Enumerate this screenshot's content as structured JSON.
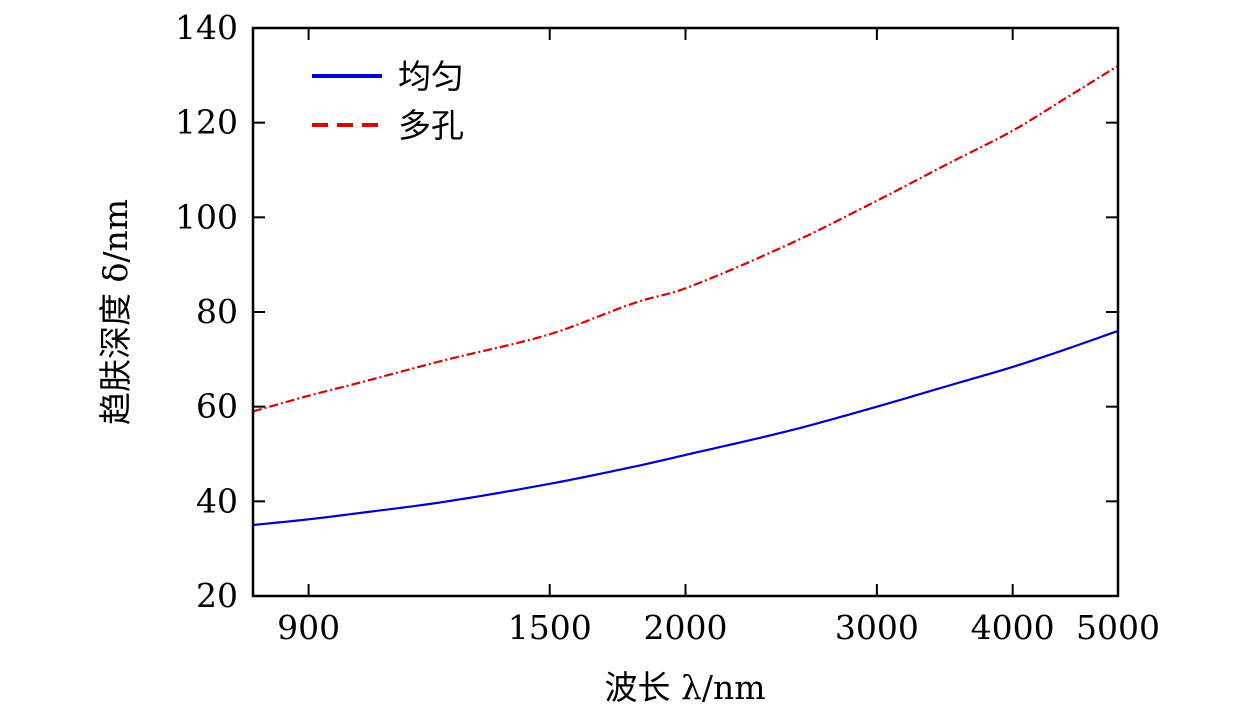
{
  "chart_data": {
    "type": "line",
    "title": "",
    "xlabel": "波长 λ/nm",
    "ylabel": "趋肤深度 δ/nm",
    "xscale": "log",
    "xlim": [
      800,
      5000
    ],
    "ylim": [
      20,
      140
    ],
    "xticks": [
      900,
      1500,
      2000,
      3000,
      4000,
      5000
    ],
    "xtick_labels": [
      "900",
      "1500",
      "2000",
      "3000",
      "4000",
      "5000"
    ],
    "yticks": [
      20,
      40,
      60,
      80,
      100,
      120,
      140
    ],
    "ytick_labels": [
      "20",
      "40",
      "60",
      "80",
      "100",
      "120",
      "140"
    ],
    "grid": false,
    "legend_position": "top-left",
    "x": [
      800,
      900,
      1000,
      1200,
      1500,
      1800,
      2000,
      2500,
      3000,
      3500,
      4000,
      4500,
      5000
    ],
    "series": [
      {
        "name": "均匀",
        "color": "#0000cc",
        "dash": "solid",
        "values": [
          35.0,
          36.2,
          37.5,
          39.9,
          43.7,
          47.4,
          49.8,
          55.0,
          60.0,
          64.5,
          68.4,
          72.3,
          76.0
        ]
      },
      {
        "name": "多孔",
        "color": "#dd0000",
        "dash": "dashdot",
        "values": [
          59.0,
          62.3,
          65.0,
          69.8,
          75.3,
          82.0,
          85.0,
          94.5,
          103.5,
          111.5,
          118.3,
          125.5,
          132.0
        ]
      }
    ]
  }
}
